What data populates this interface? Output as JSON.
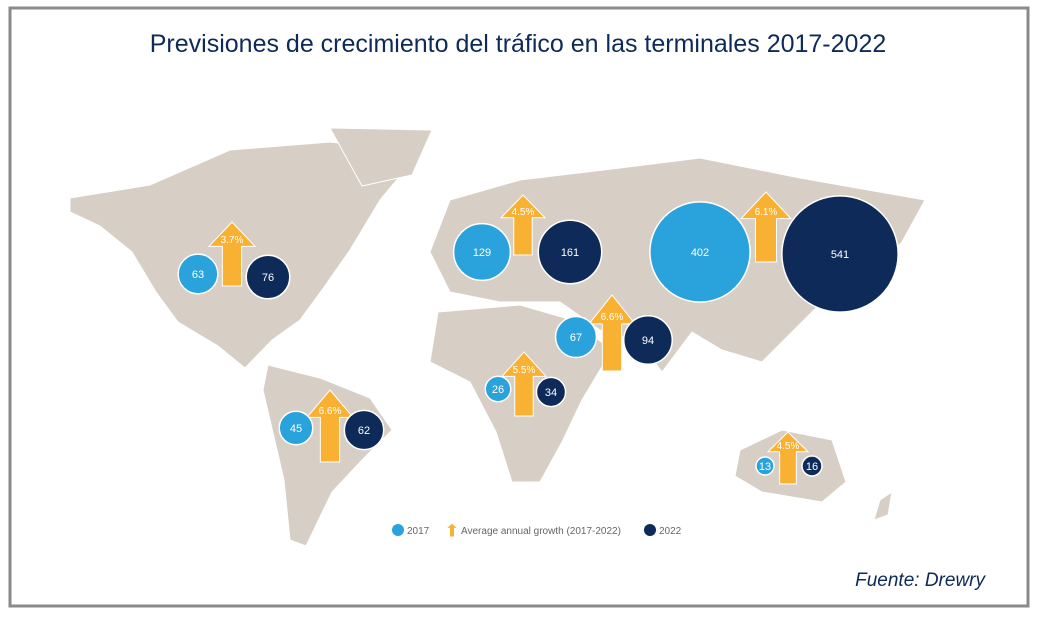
{
  "title": "Previsiones de crecimiento del tráfico en las terminales 2017-2022",
  "colors": {
    "value_2017": "#2aa3dc",
    "growth": "#f8b133",
    "value_2022": "#0e2a58"
  },
  "regions": [
    {
      "value_2017": 63,
      "growth": "3.7%",
      "value_2022": 76
    },
    {
      "value_2017": 129,
      "growth": "4.5%",
      "value_2022": 161
    },
    {
      "value_2017": 402,
      "growth": "6.1%",
      "value_2022": 541
    },
    {
      "value_2017": 67,
      "growth": "6.6%",
      "value_2022": 94
    },
    {
      "value_2017": 26,
      "growth": "5.5%",
      "value_2022": 34
    },
    {
      "value_2017": 45,
      "growth": "6.6%",
      "value_2022": 62
    },
    {
      "value_2017": 13,
      "growth": "4.5%",
      "value_2022": 16
    }
  ],
  "legend": [
    "2017",
    "Average annual growth (2017-2022)",
    "2022"
  ],
  "source": "Fuente: Drewry"
}
